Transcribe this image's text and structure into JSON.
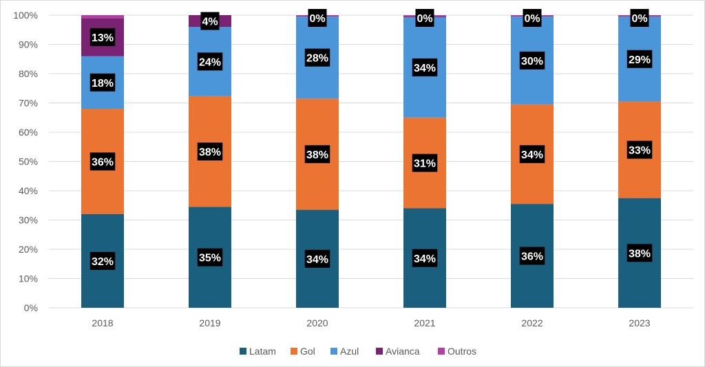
{
  "chart_data": {
    "type": "bar",
    "stacked": true,
    "normalized": true,
    "title": "",
    "xlabel": "",
    "ylabel": "",
    "ylim": [
      0,
      100
    ],
    "yticks": [
      "0%",
      "10%",
      "20%",
      "30%",
      "40%",
      "50%",
      "60%",
      "70%",
      "80%",
      "90%",
      "100%"
    ],
    "grid": true,
    "legend_position": "bottom",
    "categories": [
      "2018",
      "2019",
      "2020",
      "2021",
      "2022",
      "2023"
    ],
    "series": [
      {
        "name": "Latam",
        "color": "#1b5f7f",
        "values": [
          32,
          34.5,
          33.5,
          34,
          35.5,
          37.5
        ],
        "labels": [
          "32%",
          "35%",
          "34%",
          "34%",
          "36%",
          "38%"
        ]
      },
      {
        "name": "Gol",
        "color": "#ec7432",
        "values": [
          36,
          37.8,
          38,
          31,
          34,
          33
        ],
        "labels": [
          "36%",
          "38%",
          "38%",
          "31%",
          "34%",
          "33%"
        ]
      },
      {
        "name": "Azul",
        "color": "#4b96d9",
        "values": [
          18,
          23.7,
          28,
          34.3,
          30,
          29
        ],
        "labels": [
          "18%",
          "24%",
          "28%",
          "34%",
          "30%",
          "29%"
        ]
      },
      {
        "name": "Avianca",
        "color": "#7b2373",
        "values": [
          13,
          4,
          0.2,
          0.3,
          0.2,
          0.2
        ],
        "labels": [
          "13%",
          "4%",
          "0%",
          "0%",
          "0%",
          "0%"
        ]
      },
      {
        "name": "Outros",
        "color": "#b23ea6",
        "values": [
          1,
          0,
          0.3,
          0.4,
          0.3,
          0.3
        ],
        "labels": null
      }
    ]
  }
}
